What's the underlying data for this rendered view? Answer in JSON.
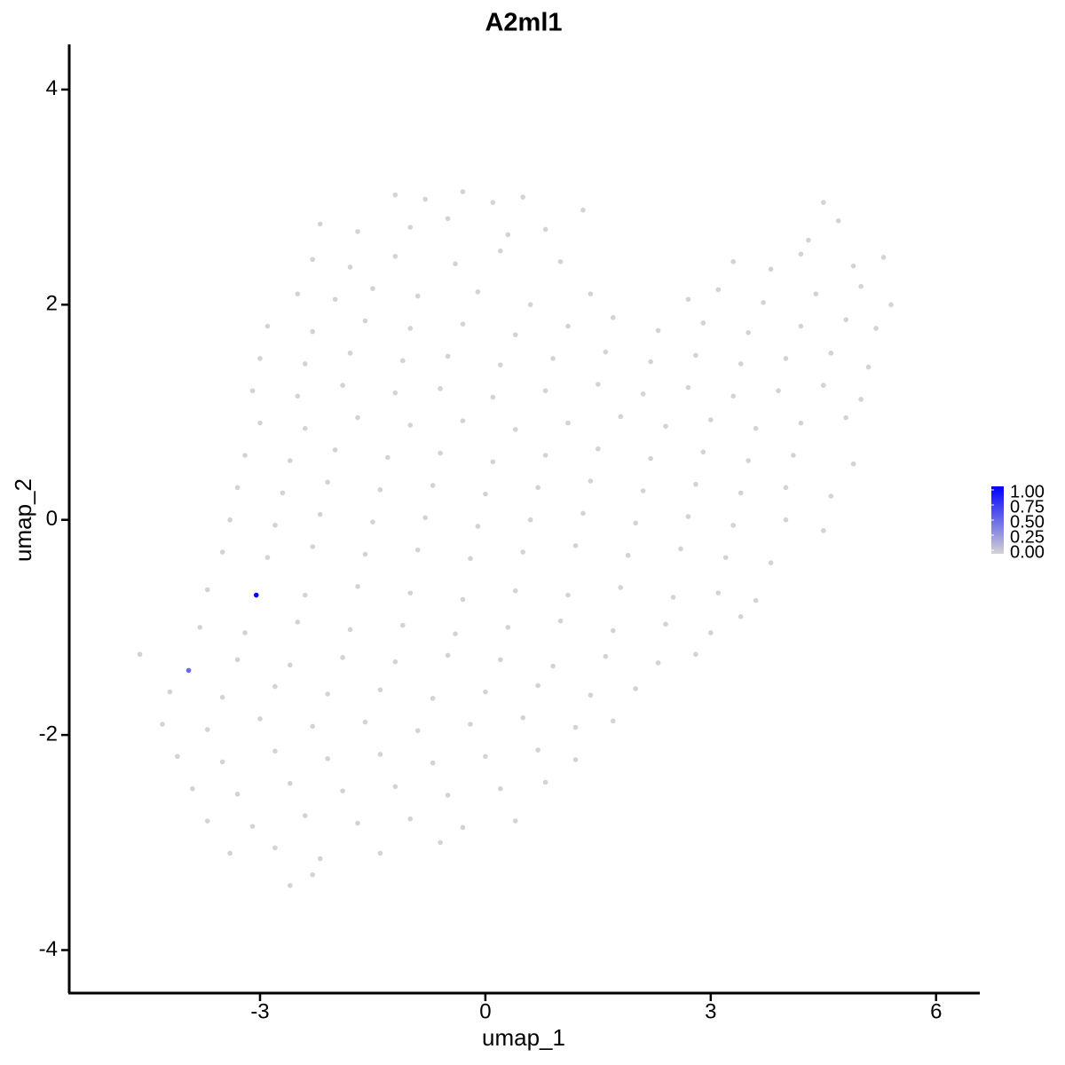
{
  "chart_data": {
    "type": "scatter",
    "title": "A2ml1",
    "x_label": "umap_1",
    "y_label": "umap_2",
    "x": [
      -1.2,
      -0.8,
      -0.3,
      0.1,
      0.5,
      1.3,
      4.5,
      -2.2,
      -1.7,
      -1.0,
      -0.5,
      0.3,
      0.8,
      4.3,
      4.7,
      -2.3,
      -1.8,
      -1.2,
      -0.4,
      0.2,
      1.0,
      3.3,
      3.8,
      4.2,
      4.9,
      5.3,
      -2.5,
      -2.0,
      -1.5,
      -0.9,
      -0.1,
      0.6,
      1.4,
      2.7,
      3.1,
      3.7,
      4.4,
      5.0,
      5.4,
      -2.9,
      -2.3,
      -1.6,
      -1.0,
      -0.3,
      0.4,
      1.1,
      1.7,
      2.3,
      2.9,
      3.5,
      4.2,
      4.8,
      5.2,
      -3.0,
      -2.4,
      -1.8,
      -1.1,
      -0.5,
      0.2,
      0.9,
      1.6,
      2.2,
      2.8,
      3.4,
      4.0,
      4.6,
      5.1,
      -3.1,
      -2.5,
      -1.9,
      -1.2,
      -0.6,
      0.1,
      0.8,
      1.5,
      2.1,
      2.7,
      3.3,
      3.9,
      4.5,
      5.0,
      -3.0,
      -2.4,
      -1.7,
      -1.0,
      -0.3,
      0.4,
      1.1,
      1.8,
      2.4,
      3.0,
      3.6,
      4.2,
      4.8,
      -3.2,
      -2.6,
      -2.0,
      -1.3,
      -0.6,
      0.1,
      0.8,
      1.5,
      2.2,
      2.9,
      3.5,
      4.1,
      4.9,
      -3.3,
      -2.7,
      -2.1,
      -1.4,
      -0.7,
      0.0,
      0.7,
      1.4,
      2.1,
      2.8,
      3.4,
      4.0,
      4.6,
      -3.4,
      -2.8,
      -2.2,
      -1.5,
      -0.8,
      -0.1,
      0.6,
      1.3,
      2.0,
      2.7,
      3.3,
      4.0,
      4.5,
      -3.5,
      -2.9,
      -2.3,
      -1.6,
      -0.9,
      -0.2,
      0.5,
      1.2,
      1.9,
      2.6,
      3.2,
      3.8,
      -3.7,
      -2.4,
      -1.7,
      -1.0,
      -0.3,
      0.4,
      1.1,
      1.8,
      2.5,
      3.1,
      3.6,
      -3.8,
      -3.2,
      -2.5,
      -1.8,
      -1.1,
      -0.4,
      0.3,
      1.0,
      1.7,
      2.4,
      3.0,
      3.4,
      -4.6,
      -3.3,
      -2.6,
      -1.9,
      -1.2,
      -0.5,
      0.2,
      0.9,
      1.6,
      2.3,
      2.8,
      -4.2,
      -3.5,
      -2.8,
      -2.1,
      -1.4,
      -0.7,
      0.0,
      0.7,
      1.4,
      2.0,
      -4.3,
      -3.7,
      -3.0,
      -2.3,
      -1.6,
      -0.9,
      -0.2,
      0.5,
      1.2,
      1.7,
      -4.1,
      -3.5,
      -2.8,
      -2.1,
      -1.4,
      -0.7,
      0.0,
      0.7,
      1.2,
      -3.9,
      -3.3,
      -2.6,
      -1.9,
      -1.2,
      -0.5,
      0.2,
      0.8,
      -3.7,
      -3.1,
      -2.4,
      -1.7,
      -1.0,
      -0.3,
      0.4,
      -3.4,
      -2.8,
      -2.2,
      -1.4,
      -0.6,
      -2.6,
      -2.3,
      -3.95,
      -3.05
    ],
    "y": [
      3.02,
      2.98,
      3.05,
      2.95,
      3.0,
      2.88,
      2.95,
      2.75,
      2.68,
      2.72,
      2.8,
      2.65,
      2.7,
      2.6,
      2.78,
      2.42,
      2.35,
      2.45,
      2.38,
      2.5,
      2.4,
      2.4,
      2.33,
      2.47,
      2.36,
      2.44,
      2.1,
      2.05,
      2.15,
      2.08,
      2.12,
      2.0,
      2.1,
      2.05,
      2.14,
      2.02,
      2.1,
      2.17,
      2.0,
      1.8,
      1.75,
      1.85,
      1.78,
      1.82,
      1.72,
      1.8,
      1.88,
      1.76,
      1.83,
      1.74,
      1.8,
      1.86,
      1.78,
      1.5,
      1.45,
      1.55,
      1.48,
      1.52,
      1.44,
      1.5,
      1.56,
      1.47,
      1.53,
      1.45,
      1.5,
      1.55,
      1.42,
      1.2,
      1.15,
      1.25,
      1.18,
      1.22,
      1.14,
      1.2,
      1.26,
      1.17,
      1.23,
      1.15,
      1.2,
      1.25,
      1.12,
      0.9,
      0.85,
      0.95,
      0.88,
      0.92,
      0.84,
      0.9,
      0.96,
      0.87,
      0.93,
      0.85,
      0.9,
      0.95,
      0.6,
      0.55,
      0.65,
      0.58,
      0.62,
      0.54,
      0.6,
      0.66,
      0.57,
      0.63,
      0.55,
      0.6,
      0.52,
      0.3,
      0.25,
      0.35,
      0.28,
      0.32,
      0.24,
      0.3,
      0.36,
      0.27,
      0.33,
      0.25,
      0.3,
      0.22,
      0.0,
      -0.05,
      0.05,
      -0.02,
      0.02,
      -0.06,
      0.0,
      0.06,
      -0.03,
      0.03,
      -0.05,
      0.0,
      -0.1,
      -0.3,
      -0.35,
      -0.25,
      -0.32,
      -0.28,
      -0.36,
      -0.3,
      -0.24,
      -0.33,
      -0.27,
      -0.35,
      -0.4,
      -0.65,
      -0.7,
      -0.62,
      -0.68,
      -0.74,
      -0.66,
      -0.7,
      -0.63,
      -0.72,
      -0.68,
      -0.75,
      -1.0,
      -1.05,
      -0.95,
      -1.02,
      -0.98,
      -1.06,
      -1.0,
      -0.94,
      -1.03,
      -0.97,
      -1.05,
      -0.9,
      -1.25,
      -1.3,
      -1.35,
      -1.28,
      -1.32,
      -1.26,
      -1.3,
      -1.36,
      -1.27,
      -1.33,
      -1.25,
      -1.6,
      -1.65,
      -1.55,
      -1.62,
      -1.58,
      -1.66,
      -1.6,
      -1.54,
      -1.63,
      -1.57,
      -1.9,
      -1.95,
      -1.85,
      -1.92,
      -1.88,
      -1.96,
      -1.9,
      -1.84,
      -1.93,
      -1.87,
      -2.2,
      -2.25,
      -2.15,
      -2.22,
      -2.18,
      -2.26,
      -2.2,
      -2.14,
      -2.23,
      -2.5,
      -2.55,
      -2.45,
      -2.52,
      -2.48,
      -2.56,
      -2.5,
      -2.44,
      -2.8,
      -2.85,
      -2.75,
      -2.82,
      -2.78,
      -2.86,
      -2.8,
      -3.1,
      -3.05,
      -3.15,
      -3.1,
      -3.0,
      -3.4,
      -3.3,
      -1.4,
      -0.7
    ],
    "values": [
      0,
      0,
      0,
      0,
      0,
      0,
      0,
      0,
      0,
      0,
      0,
      0,
      0,
      0,
      0,
      0,
      0,
      0,
      0,
      0,
      0,
      0,
      0,
      0,
      0,
      0,
      0,
      0,
      0,
      0,
      0,
      0,
      0,
      0,
      0,
      0,
      0,
      0,
      0,
      0,
      0,
      0,
      0,
      0,
      0,
      0,
      0,
      0,
      0,
      0,
      0,
      0,
      0,
      0,
      0,
      0,
      0,
      0,
      0,
      0,
      0,
      0,
      0,
      0,
      0,
      0,
      0,
      0,
      0,
      0,
      0,
      0,
      0,
      0,
      0,
      0,
      0,
      0,
      0,
      0,
      0,
      0,
      0,
      0,
      0,
      0,
      0,
      0,
      0,
      0,
      0,
      0,
      0,
      0,
      0,
      0,
      0,
      0,
      0,
      0,
      0,
      0,
      0,
      0,
      0,
      0,
      0,
      0,
      0,
      0,
      0,
      0,
      0,
      0,
      0,
      0,
      0,
      0,
      0,
      0,
      0,
      0,
      0,
      0,
      0,
      0,
      0,
      0,
      0,
      0,
      0,
      0,
      0,
      0,
      0,
      0,
      0,
      0,
      0,
      0,
      0,
      0,
      0,
      0,
      0,
      0,
      0,
      0,
      0,
      0,
      0,
      0,
      0,
      0,
      0,
      0,
      0,
      0,
      0,
      0,
      0,
      0,
      0,
      0,
      0,
      0,
      0,
      0,
      0,
      0,
      0,
      0,
      0,
      0,
      0,
      0,
      0,
      0,
      0,
      0,
      0,
      0,
      0,
      0,
      0,
      0,
      0,
      0,
      0,
      0,
      0,
      0,
      0,
      0,
      0,
      0,
      0,
      0,
      0,
      0,
      0,
      0,
      0,
      0,
      0,
      0,
      0,
      0,
      0,
      0,
      0,
      0,
      0,
      0,
      0,
      0,
      0,
      0,
      0,
      0,
      0,
      0,
      0,
      0,
      0,
      0,
      0,
      0,
      0,
      0,
      0.5,
      1
    ],
    "xlim": [
      -5.54,
      6.57
    ],
    "xticks": [
      -3,
      0,
      3,
      6
    ],
    "ylim": [
      -4.4,
      4.42
    ],
    "yticks": [
      -4,
      -2,
      0,
      2,
      4
    ],
    "color_low": "#d3d3d3",
    "color_high": "#0000ff",
    "clim": [
      0,
      1
    ],
    "cticks": [
      {
        "value": 0,
        "label": "0.00"
      },
      {
        "value": 0.25,
        "label": "0.25"
      },
      {
        "value": 0.5,
        "label": "0.50"
      },
      {
        "value": 0.75,
        "label": "0.75"
      },
      {
        "value": 1,
        "label": "1.00"
      }
    ],
    "legend": "right"
  }
}
